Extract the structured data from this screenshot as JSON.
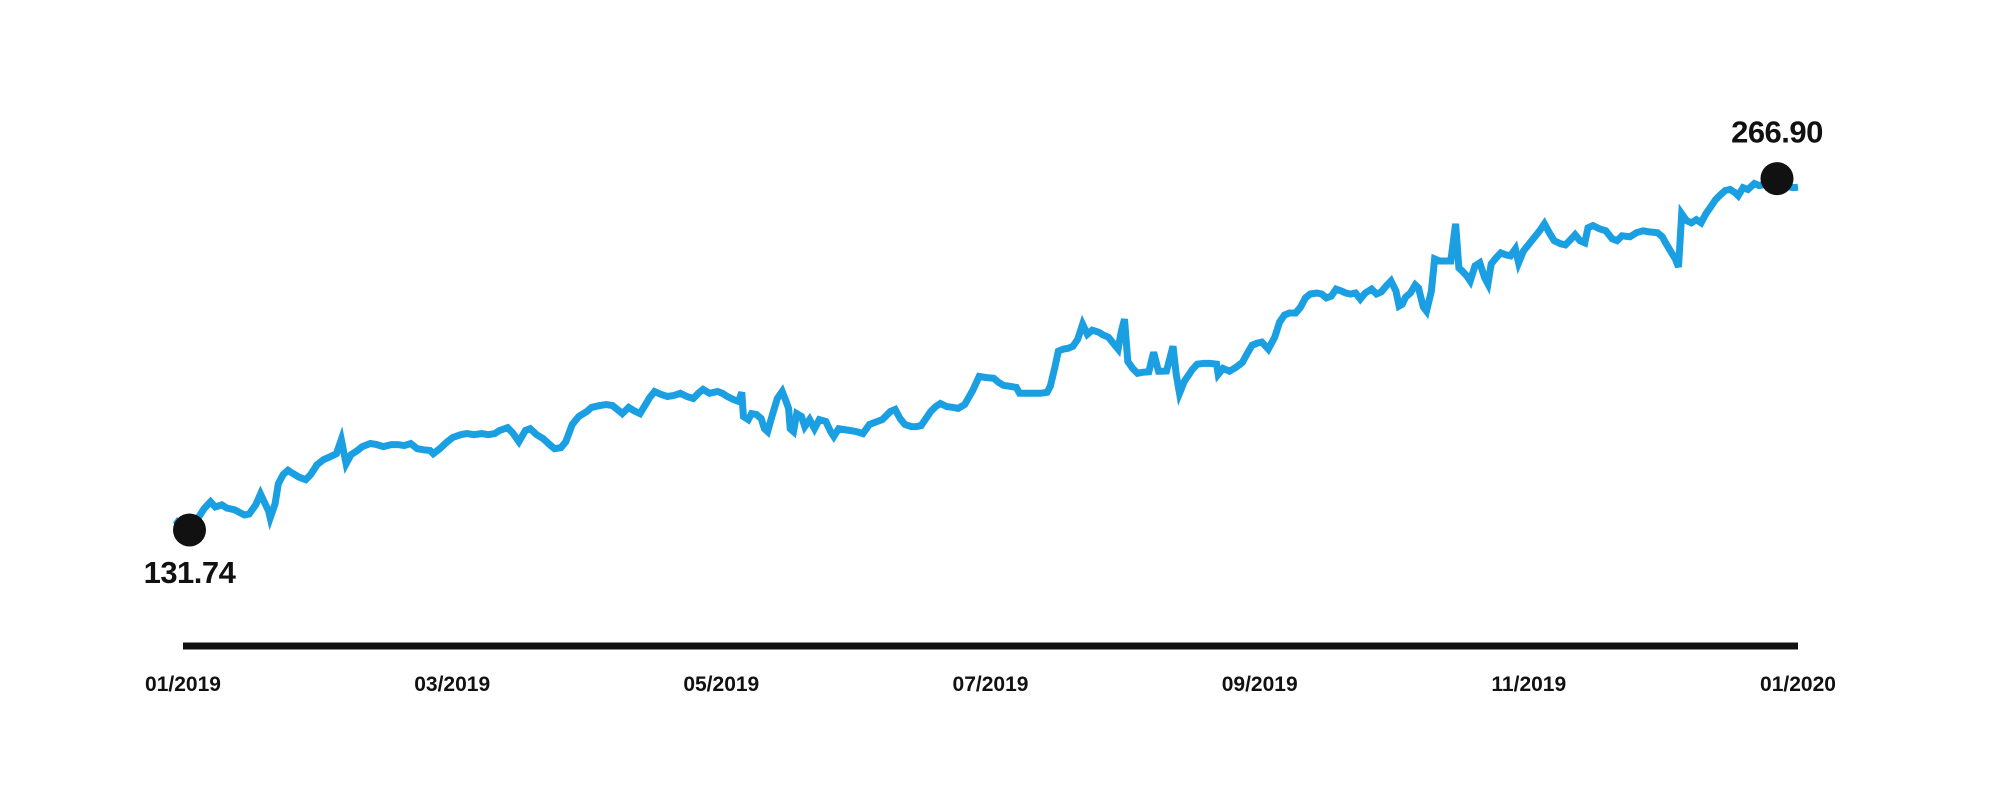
{
  "chart_data": {
    "type": "line",
    "title": "",
    "grid": false,
    "legend": null,
    "x_axis": {
      "labels": [
        "01/2019",
        "03/2019",
        "05/2019",
        "07/2019",
        "09/2019",
        "11/2019",
        "01/2020"
      ]
    },
    "y_implied_range": [
      131.74,
      266.9
    ],
    "markers": {
      "start": {
        "t": 0.004,
        "value": 131.74,
        "label": "131.74",
        "label_position": "below"
      },
      "end": {
        "t": 0.987,
        "value": 266.9,
        "label": "266.90",
        "label_position": "above"
      }
    },
    "colors": {
      "line": "#1a9fe3",
      "marker": "#111111",
      "axis": "#111111",
      "text": "#111111",
      "background": "#ffffff"
    },
    "series": {
      "name": "price",
      "points": [
        [
          -0.005,
          135.6
        ],
        [
          0.004,
          131.74
        ],
        [
          0.009,
          136.0
        ],
        [
          0.013,
          139.9
        ],
        [
          0.017,
          142.6
        ],
        [
          0.02,
          140.6
        ],
        [
          0.024,
          141.4
        ],
        [
          0.027,
          140.2
        ],
        [
          0.032,
          139.5
        ],
        [
          0.035,
          138.5
        ],
        [
          0.038,
          137.5
        ],
        [
          0.041,
          137.9
        ],
        [
          0.045,
          141.4
        ],
        [
          0.048,
          145.6
        ],
        [
          0.05,
          142.9
        ],
        [
          0.053,
          139.0
        ],
        [
          0.054,
          136.4
        ],
        [
          0.057,
          141.8
        ],
        [
          0.059,
          149.5
        ],
        [
          0.062,
          153.0
        ],
        [
          0.065,
          154.7
        ],
        [
          0.068,
          153.5
        ],
        [
          0.072,
          152.0
        ],
        [
          0.076,
          151.1
        ],
        [
          0.079,
          153.0
        ],
        [
          0.083,
          156.8
        ],
        [
          0.087,
          158.8
        ],
        [
          0.091,
          159.9
        ],
        [
          0.095,
          161.1
        ],
        [
          0.098,
          166.5
        ],
        [
          0.101,
          157.2
        ],
        [
          0.104,
          160.7
        ],
        [
          0.108,
          162.3
        ],
        [
          0.111,
          163.8
        ],
        [
          0.116,
          165.0
        ],
        [
          0.12,
          164.6
        ],
        [
          0.124,
          163.8
        ],
        [
          0.129,
          164.6
        ],
        [
          0.133,
          164.6
        ],
        [
          0.137,
          164.2
        ],
        [
          0.141,
          165.0
        ],
        [
          0.145,
          163.0
        ],
        [
          0.149,
          162.6
        ],
        [
          0.153,
          162.3
        ],
        [
          0.155,
          161.1
        ],
        [
          0.159,
          163.0
        ],
        [
          0.163,
          165.3
        ],
        [
          0.167,
          167.3
        ],
        [
          0.172,
          168.4
        ],
        [
          0.176,
          168.8
        ],
        [
          0.18,
          168.4
        ],
        [
          0.185,
          168.8
        ],
        [
          0.189,
          168.4
        ],
        [
          0.193,
          168.8
        ],
        [
          0.196,
          170.0
        ],
        [
          0.201,
          171.1
        ],
        [
          0.204,
          169.2
        ],
        [
          0.208,
          165.7
        ],
        [
          0.212,
          170.0
        ],
        [
          0.215,
          170.7
        ],
        [
          0.219,
          168.4
        ],
        [
          0.223,
          166.9
        ],
        [
          0.227,
          164.6
        ],
        [
          0.23,
          163.0
        ],
        [
          0.234,
          163.4
        ],
        [
          0.237,
          165.7
        ],
        [
          0.241,
          172.3
        ],
        [
          0.245,
          175.4
        ],
        [
          0.25,
          177.3
        ],
        [
          0.253,
          178.9
        ],
        [
          0.258,
          179.6
        ],
        [
          0.262,
          180.0
        ],
        [
          0.266,
          179.6
        ],
        [
          0.269,
          178.1
        ],
        [
          0.272,
          176.5
        ],
        [
          0.276,
          178.9
        ],
        [
          0.279,
          177.7
        ],
        [
          0.283,
          176.5
        ],
        [
          0.286,
          179.6
        ],
        [
          0.289,
          182.7
        ],
        [
          0.292,
          185.0
        ],
        [
          0.296,
          183.9
        ],
        [
          0.3,
          183.1
        ],
        [
          0.304,
          183.5
        ],
        [
          0.308,
          184.3
        ],
        [
          0.312,
          183.1
        ],
        [
          0.316,
          182.3
        ],
        [
          0.319,
          184.3
        ],
        [
          0.322,
          185.8
        ],
        [
          0.326,
          184.3
        ],
        [
          0.331,
          185.0
        ],
        [
          0.334,
          184.3
        ],
        [
          0.337,
          183.1
        ],
        [
          0.341,
          181.9
        ],
        [
          0.344,
          181.2
        ],
        [
          0.346,
          184.7
        ],
        [
          0.347,
          175.4
        ],
        [
          0.35,
          174.2
        ],
        [
          0.352,
          176.5
        ],
        [
          0.355,
          176.2
        ],
        [
          0.358,
          174.6
        ],
        [
          0.36,
          170.7
        ],
        [
          0.362,
          169.6
        ],
        [
          0.365,
          176.2
        ],
        [
          0.368,
          182.3
        ],
        [
          0.371,
          185.0
        ],
        [
          0.373,
          181.9
        ],
        [
          0.375,
          178.5
        ],
        [
          0.376,
          170.7
        ],
        [
          0.378,
          169.6
        ],
        [
          0.38,
          176.5
        ],
        [
          0.383,
          175.4
        ],
        [
          0.385,
          171.5
        ],
        [
          0.388,
          174.2
        ],
        [
          0.391,
          170.7
        ],
        [
          0.394,
          174.2
        ],
        [
          0.398,
          173.5
        ],
        [
          0.401,
          169.6
        ],
        [
          0.403,
          167.7
        ],
        [
          0.406,
          170.7
        ],
        [
          0.409,
          170.4
        ],
        [
          0.413,
          170.0
        ],
        [
          0.417,
          169.6
        ],
        [
          0.421,
          168.8
        ],
        [
          0.425,
          172.3
        ],
        [
          0.43,
          173.5
        ],
        [
          0.433,
          174.2
        ],
        [
          0.438,
          177.3
        ],
        [
          0.441,
          178.1
        ],
        [
          0.444,
          174.6
        ],
        [
          0.447,
          172.3
        ],
        [
          0.451,
          171.5
        ],
        [
          0.454,
          171.5
        ],
        [
          0.457,
          171.9
        ],
        [
          0.46,
          174.6
        ],
        [
          0.463,
          177.3
        ],
        [
          0.466,
          179.2
        ],
        [
          0.469,
          180.4
        ],
        [
          0.473,
          179.2
        ],
        [
          0.477,
          178.9
        ],
        [
          0.48,
          178.5
        ],
        [
          0.484,
          180.0
        ],
        [
          0.489,
          185.4
        ],
        [
          0.493,
          190.8
        ],
        [
          0.497,
          190.4
        ],
        [
          0.502,
          190.1
        ],
        [
          0.505,
          188.5
        ],
        [
          0.508,
          187.4
        ],
        [
          0.512,
          187.0
        ],
        [
          0.516,
          186.6
        ],
        [
          0.518,
          184.3
        ],
        [
          0.523,
          184.3
        ],
        [
          0.527,
          184.3
        ],
        [
          0.531,
          184.3
        ],
        [
          0.535,
          184.7
        ],
        [
          0.537,
          187.0
        ],
        [
          0.54,
          194.7
        ],
        [
          0.542,
          200.5
        ],
        [
          0.545,
          201.3
        ],
        [
          0.548,
          201.6
        ],
        [
          0.551,
          202.4
        ],
        [
          0.554,
          205.1
        ],
        [
          0.557,
          210.9
        ],
        [
          0.56,
          207.0
        ],
        [
          0.563,
          208.6
        ],
        [
          0.567,
          207.8
        ],
        [
          0.57,
          206.7
        ],
        [
          0.573,
          205.9
        ],
        [
          0.576,
          203.6
        ],
        [
          0.579,
          201.3
        ],
        [
          0.581,
          208.2
        ],
        [
          0.583,
          212.8
        ],
        [
          0.585,
          196.6
        ],
        [
          0.588,
          193.9
        ],
        [
          0.591,
          192.0
        ],
        [
          0.594,
          192.4
        ],
        [
          0.598,
          192.6
        ],
        [
          0.601,
          200.1
        ],
        [
          0.604,
          192.8
        ],
        [
          0.606,
          192.8
        ],
        [
          0.609,
          192.9
        ],
        [
          0.613,
          202.4
        ],
        [
          0.615,
          191.6
        ],
        [
          0.617,
          184.3
        ],
        [
          0.62,
          188.9
        ],
        [
          0.625,
          193.5
        ],
        [
          0.628,
          195.5
        ],
        [
          0.632,
          195.8
        ],
        [
          0.636,
          195.8
        ],
        [
          0.64,
          195.5
        ],
        [
          0.641,
          191.6
        ],
        [
          0.644,
          193.9
        ],
        [
          0.648,
          192.8
        ],
        [
          0.652,
          194.3
        ],
        [
          0.656,
          196.2
        ],
        [
          0.659,
          199.7
        ],
        [
          0.662,
          202.8
        ],
        [
          0.665,
          203.6
        ],
        [
          0.668,
          204.0
        ],
        [
          0.671,
          202.0
        ],
        [
          0.672,
          201.3
        ],
        [
          0.676,
          205.9
        ],
        [
          0.679,
          211.7
        ],
        [
          0.682,
          214.4
        ],
        [
          0.685,
          215.2
        ],
        [
          0.689,
          215.2
        ],
        [
          0.692,
          217.5
        ],
        [
          0.695,
          221.0
        ],
        [
          0.698,
          222.5
        ],
        [
          0.702,
          222.9
        ],
        [
          0.705,
          222.5
        ],
        [
          0.708,
          221.0
        ],
        [
          0.711,
          221.7
        ],
        [
          0.714,
          224.4
        ],
        [
          0.717,
          223.7
        ],
        [
          0.72,
          222.9
        ],
        [
          0.723,
          222.5
        ],
        [
          0.726,
          222.9
        ],
        [
          0.729,
          220.6
        ],
        [
          0.732,
          222.9
        ],
        [
          0.736,
          224.4
        ],
        [
          0.739,
          222.5
        ],
        [
          0.742,
          223.3
        ],
        [
          0.745,
          225.6
        ],
        [
          0.748,
          227.5
        ],
        [
          0.751,
          223.7
        ],
        [
          0.753,
          217.9
        ],
        [
          0.755,
          218.6
        ],
        [
          0.757,
          221.3
        ],
        [
          0.76,
          222.9
        ],
        [
          0.763,
          226.0
        ],
        [
          0.765,
          224.8
        ],
        [
          0.768,
          217.5
        ],
        [
          0.77,
          215.9
        ],
        [
          0.773,
          223.7
        ],
        [
          0.775,
          236.0
        ],
        [
          0.778,
          235.2
        ],
        [
          0.782,
          235.2
        ],
        [
          0.785,
          235.2
        ],
        [
          0.788,
          249.5
        ],
        [
          0.79,
          232.5
        ],
        [
          0.792,
          231.4
        ],
        [
          0.795,
          229.4
        ],
        [
          0.797,
          227.5
        ],
        [
          0.8,
          233.3
        ],
        [
          0.803,
          234.5
        ],
        [
          0.806,
          228.7
        ],
        [
          0.808,
          226.4
        ],
        [
          0.81,
          234.1
        ],
        [
          0.813,
          236.4
        ],
        [
          0.816,
          238.3
        ],
        [
          0.819,
          237.6
        ],
        [
          0.822,
          237.2
        ],
        [
          0.825,
          239.9
        ],
        [
          0.827,
          234.5
        ],
        [
          0.83,
          239.1
        ],
        [
          0.833,
          241.4
        ],
        [
          0.836,
          243.7
        ],
        [
          0.84,
          246.8
        ],
        [
          0.843,
          249.5
        ],
        [
          0.846,
          246.1
        ],
        [
          0.849,
          243.0
        ],
        [
          0.853,
          241.8
        ],
        [
          0.856,
          241.4
        ],
        [
          0.859,
          243.3
        ],
        [
          0.862,
          245.3
        ],
        [
          0.865,
          243.0
        ],
        [
          0.868,
          242.2
        ],
        [
          0.87,
          248.0
        ],
        [
          0.873,
          248.8
        ],
        [
          0.877,
          247.6
        ],
        [
          0.881,
          246.8
        ],
        [
          0.885,
          243.7
        ],
        [
          0.888,
          243.0
        ],
        [
          0.891,
          244.9
        ],
        [
          0.896,
          244.5
        ],
        [
          0.9,
          246.1
        ],
        [
          0.904,
          246.8
        ],
        [
          0.908,
          246.4
        ],
        [
          0.913,
          246.1
        ],
        [
          0.916,
          244.5
        ],
        [
          0.918,
          242.2
        ],
        [
          0.921,
          239.1
        ],
        [
          0.924,
          236.0
        ],
        [
          0.926,
          232.9
        ],
        [
          0.928,
          253.4
        ],
        [
          0.931,
          250.7
        ],
        [
          0.934,
          249.9
        ],
        [
          0.937,
          251.1
        ],
        [
          0.94,
          249.9
        ],
        [
          0.943,
          253.4
        ],
        [
          0.946,
          256.1
        ],
        [
          0.949,
          258.8
        ],
        [
          0.952,
          260.7
        ],
        [
          0.955,
          262.3
        ],
        [
          0.958,
          262.7
        ],
        [
          0.961,
          261.5
        ],
        [
          0.963,
          260.3
        ],
        [
          0.966,
          263.4
        ],
        [
          0.969,
          262.7
        ],
        [
          0.973,
          265.0
        ],
        [
          0.976,
          264.2
        ],
        [
          0.979,
          264.6
        ],
        [
          0.982,
          265.0
        ],
        [
          0.984,
          265.7
        ],
        [
          0.987,
          266.9
        ],
        [
          0.99,
          264.2
        ],
        [
          0.994,
          263.8
        ],
        [
          0.997,
          263.4
        ],
        [
          1.0,
          263.6
        ]
      ]
    }
  }
}
